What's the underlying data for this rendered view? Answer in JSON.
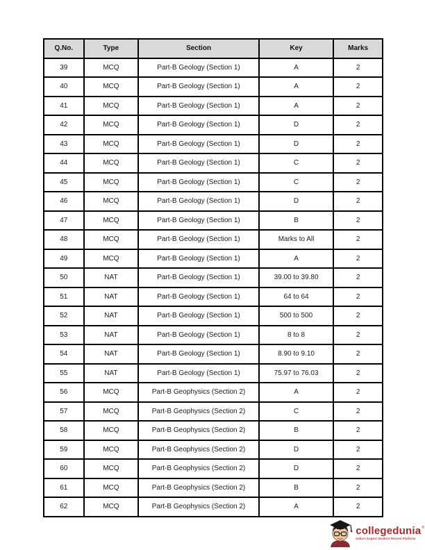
{
  "table": {
    "columns": [
      "Q.No.",
      "Type",
      "Section",
      "Key",
      "Marks"
    ],
    "header_bg": "#d9d9d9",
    "border_color": "#000000",
    "rows": [
      [
        "39",
        "MCQ",
        "Part-B Geology (Section 1)",
        "A",
        "2"
      ],
      [
        "40",
        "MCQ",
        "Part-B Geology (Section 1)",
        "A",
        "2"
      ],
      [
        "41",
        "MCQ",
        "Part-B Geology (Section 1)",
        "A",
        "2"
      ],
      [
        "42",
        "MCQ",
        "Part-B Geology (Section 1)",
        "D",
        "2"
      ],
      [
        "43",
        "MCQ",
        "Part-B Geology (Section 1)",
        "D",
        "2"
      ],
      [
        "44",
        "MCQ",
        "Part-B Geology (Section 1)",
        "C",
        "2"
      ],
      [
        "45",
        "MCQ",
        "Part-B Geology (Section 1)",
        "C",
        "2"
      ],
      [
        "46",
        "MCQ",
        "Part-B Geology (Section 1)",
        "D",
        "2"
      ],
      [
        "47",
        "MCQ",
        "Part-B Geology (Section 1)",
        "B",
        "2"
      ],
      [
        "48",
        "MCQ",
        "Part-B Geology (Section 1)",
        "Marks to All",
        "2"
      ],
      [
        "49",
        "MCQ",
        "Part-B Geology (Section 1)",
        "A",
        "2"
      ],
      [
        "50",
        "NAT",
        "Part-B Geology (Section 1)",
        "39.00 to 39.80",
        "2"
      ],
      [
        "51",
        "NAT",
        "Part-B Geology (Section 1)",
        "64 to 64",
        "2"
      ],
      [
        "52",
        "NAT",
        "Part-B Geology (Section 1)",
        "500 to 500",
        "2"
      ],
      [
        "53",
        "NAT",
        "Part-B Geology (Section 1)",
        "8 to 8",
        "2"
      ],
      [
        "54",
        "NAT",
        "Part-B Geology (Section 1)",
        "8.90 to 9.10",
        "2"
      ],
      [
        "55",
        "NAT",
        "Part-B Geology (Section 1)",
        "75.97 to 76.03",
        "2"
      ],
      [
        "56",
        "MCQ",
        "Part-B Geophysics (Section 2)",
        "A",
        "2"
      ],
      [
        "57",
        "MCQ",
        "Part-B Geophysics (Section 2)",
        "C",
        "2"
      ],
      [
        "58",
        "MCQ",
        "Part-B Geophysics (Section 2)",
        "B",
        "2"
      ],
      [
        "59",
        "MCQ",
        "Part-B Geophysics (Section 2)",
        "D",
        "2"
      ],
      [
        "60",
        "MCQ",
        "Part-B Geophysics (Section 2)",
        "D",
        "2"
      ],
      [
        "61",
        "MCQ",
        "Part-B Geophysics (Section 2)",
        "B",
        "2"
      ],
      [
        "62",
        "MCQ",
        "Part-B Geophysics (Section 2)",
        "A",
        "2"
      ]
    ]
  },
  "footer": {
    "logo_text": "collegedunia",
    "registered_mark": "®",
    "tagline": "India's largest Student Review Platform",
    "brand_color": "#a32a30"
  }
}
